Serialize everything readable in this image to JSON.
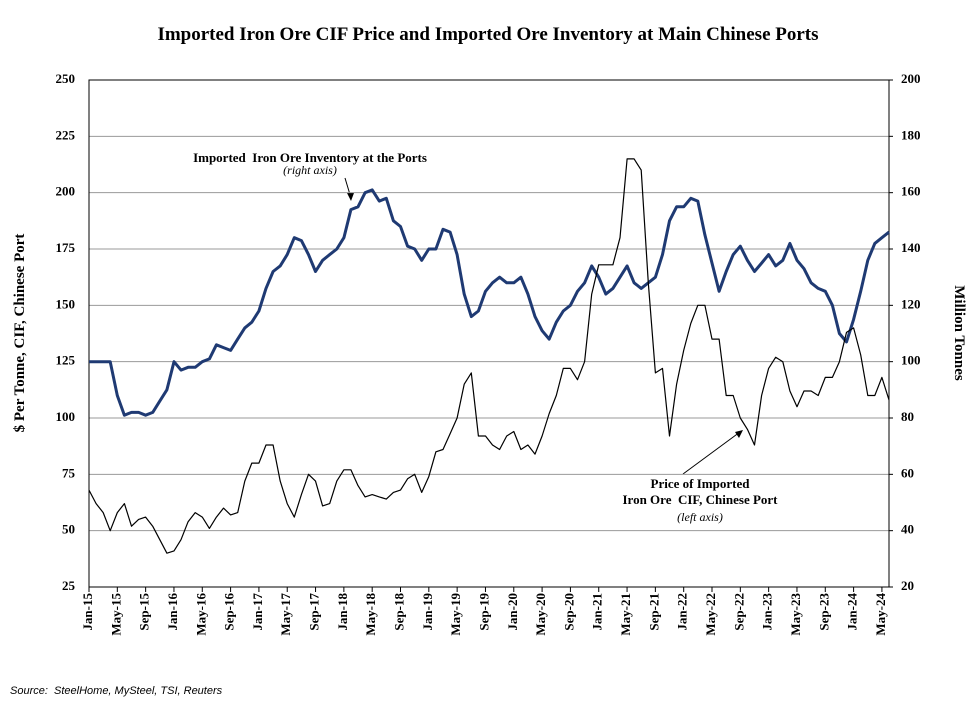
{
  "chart_data": {
    "type": "line",
    "title": "Imported Iron Ore CIF Price and Imported Ore Inventory at Main Chinese Ports",
    "ylabel": "$ Per Tonne, CIF, Chinese Port",
    "y2label": "Million Tonnes",
    "source": "Source:  SteelHome, MySteel, TSI, Reuters",
    "annotations": [
      "(right axis)",
      "Price of Imported",
      "Iron Ore  CIF, Chinese Port",
      "(left axis)"
    ],
    "categories": [
      "Jan-15",
      null,
      null,
      null,
      "May-15",
      null,
      null,
      null,
      "Sep-15",
      null,
      null,
      null,
      "Jan-16",
      null,
      null,
      null,
      "May-16",
      null,
      null,
      null,
      "Sep-16",
      null,
      null,
      null,
      "Jan-17",
      null,
      null,
      null,
      "May-17",
      null,
      null,
      null,
      "Sep-17",
      null,
      null,
      null,
      "Jan-18",
      null,
      null,
      null,
      "May-18",
      null,
      null,
      null,
      "Sep-18",
      null,
      null,
      null,
      "Jan-19",
      null,
      null,
      null,
      "May-19",
      null,
      null,
      null,
      "Sep-19",
      null,
      null,
      null,
      "Jan-20",
      null,
      null,
      null,
      "May-20",
      null,
      null,
      null,
      "Sep-20",
      null,
      null,
      null,
      "Jan-21",
      null,
      null,
      null,
      "May-21",
      null,
      null,
      null,
      "Sep-21",
      null,
      null,
      null,
      "Jan-22",
      null,
      null,
      null,
      "May-22",
      null,
      null,
      null,
      "Sep-22",
      null,
      null,
      null,
      "Jan-23",
      null,
      null,
      null,
      "May-23",
      null,
      null,
      null,
      "Sep-23",
      null,
      null,
      null,
      "Jan-24",
      null,
      null,
      null,
      "May-24",
      null
    ],
    "series": [
      {
        "color": "#000000",
        "values": [
          68,
          62,
          58,
          50,
          58,
          62,
          52,
          55,
          56,
          52,
          46,
          40,
          41,
          46,
          54,
          58,
          56,
          51,
          56,
          60,
          57,
          58,
          72,
          80,
          80,
          88,
          88,
          72,
          62,
          56,
          66,
          75,
          72,
          61,
          62,
          72,
          77,
          77,
          70,
          65,
          66,
          65,
          64,
          67,
          68,
          73,
          75,
          67,
          74,
          85,
          86,
          93,
          100,
          115,
          120,
          92,
          92,
          88,
          86,
          92,
          94,
          86,
          88,
          84,
          92,
          102,
          110,
          122,
          122,
          117,
          125,
          155,
          168,
          168,
          168,
          180,
          215,
          215,
          210,
          160,
          120,
          122,
          92,
          115,
          130,
          142,
          150,
          150,
          135,
          135,
          110,
          110,
          100,
          95,
          88,
          110,
          122,
          127,
          125,
          112,
          105,
          112,
          112,
          110,
          118,
          118,
          125,
          138,
          140,
          128,
          110,
          110,
          118,
          108
        ]
      },
      {
        "name": "Imported  Iron Ore Inventory at the Ports",
        "color": "#1f3a73",
        "axis": "y2",
        "values": [
          100,
          100,
          100,
          100,
          88,
          81,
          82,
          82,
          81,
          82,
          86,
          90,
          100,
          97,
          98,
          98,
          100,
          101,
          106,
          105,
          104,
          108,
          112,
          114,
          118,
          126,
          132,
          134,
          138,
          144,
          143,
          138,
          132,
          136,
          138,
          140,
          144,
          154,
          155,
          160,
          161,
          157,
          158,
          150,
          148,
          141,
          140,
          136,
          140,
          140,
          147,
          146,
          138,
          124,
          116,
          118,
          125,
          128,
          130,
          128,
          128,
          130,
          124,
          116,
          111,
          108,
          114,
          118,
          120,
          125,
          128,
          134,
          130,
          124,
          126,
          130,
          134,
          128,
          126,
          128,
          130,
          138,
          150,
          155,
          155,
          158,
          157,
          145,
          135,
          125,
          132,
          138,
          141,
          136,
          132,
          135,
          138,
          134,
          136,
          142,
          136,
          133,
          128,
          126,
          125,
          120,
          110,
          107,
          115,
          125,
          136,
          142,
          144,
          146
        ]
      }
    ],
    "ylim": [
      25,
      250
    ],
    "yticks": [
      25,
      50,
      75,
      100,
      125,
      150,
      175,
      200,
      225,
      250
    ],
    "y2lim": [
      20,
      200
    ],
    "y2ticks": [
      20,
      40,
      60,
      80,
      100,
      120,
      140,
      160,
      180,
      200
    ],
    "grid": true
  }
}
